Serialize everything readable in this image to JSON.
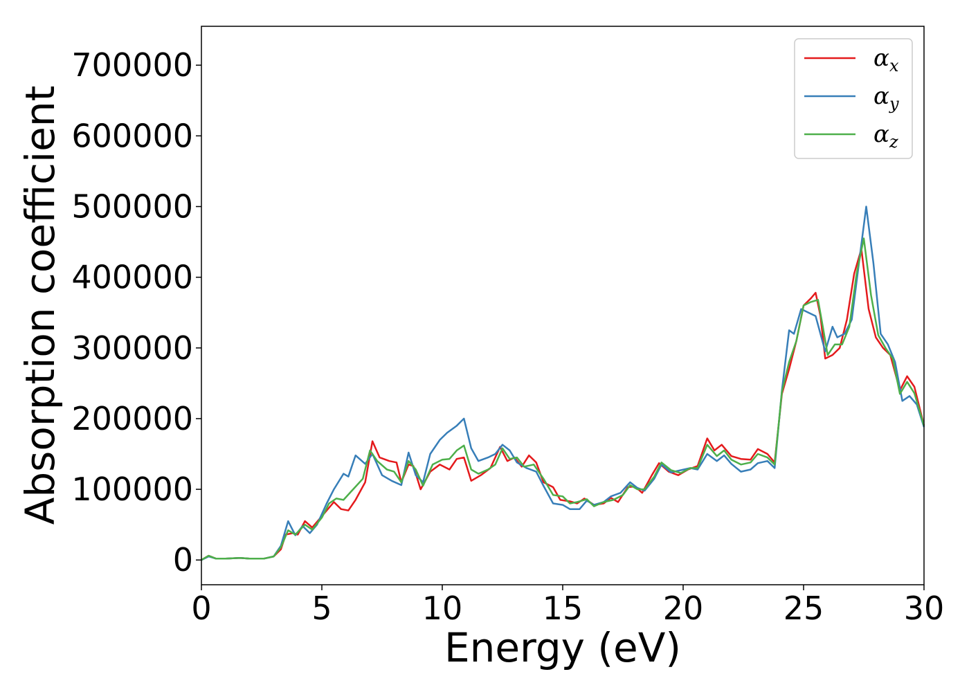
{
  "chart_data": {
    "type": "line",
    "title": "",
    "xlabel": "Energy (eV)",
    "ylabel": "Absorption coefficient",
    "xlim": [
      0,
      30
    ],
    "ylim": [
      -35000,
      755000
    ],
    "x_ticks": [
      0,
      5,
      10,
      15,
      20,
      25,
      30
    ],
    "y_ticks": [
      0,
      100000,
      200000,
      300000,
      400000,
      500000,
      600000,
      700000
    ],
    "grid": false,
    "legend": "top-right",
    "series": [
      {
        "name": "α_x",
        "legend_main": "α",
        "legend_sub": "x",
        "color": "#e41a1c",
        "points": [
          [
            0,
            0
          ],
          [
            0.3,
            6000
          ],
          [
            0.6,
            2000
          ],
          [
            1.0,
            2000
          ],
          [
            1.6,
            3000
          ],
          [
            2.0,
            2000
          ],
          [
            2.6,
            2000
          ],
          [
            3.0,
            5000
          ],
          [
            3.3,
            15000
          ],
          [
            3.5,
            36000
          ],
          [
            3.8,
            38000
          ],
          [
            4.0,
            36000
          ],
          [
            4.3,
            55000
          ],
          [
            4.6,
            46000
          ],
          [
            5.0,
            62000
          ],
          [
            5.5,
            82000
          ],
          [
            5.8,
            72000
          ],
          [
            6.1,
            70000
          ],
          [
            6.4,
            85000
          ],
          [
            6.8,
            110000
          ],
          [
            7.1,
            168000
          ],
          [
            7.4,
            145000
          ],
          [
            7.8,
            140000
          ],
          [
            8.1,
            138000
          ],
          [
            8.3,
            110000
          ],
          [
            8.6,
            135000
          ],
          [
            8.8,
            133000
          ],
          [
            9.1,
            100000
          ],
          [
            9.5,
            125000
          ],
          [
            9.9,
            135000
          ],
          [
            10.3,
            128000
          ],
          [
            10.6,
            143000
          ],
          [
            10.9,
            145000
          ],
          [
            11.2,
            112000
          ],
          [
            11.6,
            120000
          ],
          [
            12.0,
            130000
          ],
          [
            12.4,
            160000
          ],
          [
            12.7,
            140000
          ],
          [
            13.0,
            145000
          ],
          [
            13.3,
            132000
          ],
          [
            13.6,
            148000
          ],
          [
            13.9,
            138000
          ],
          [
            14.2,
            110000
          ],
          [
            14.6,
            103000
          ],
          [
            14.9,
            85000
          ],
          [
            15.3,
            83000
          ],
          [
            15.6,
            80000
          ],
          [
            15.9,
            87000
          ],
          [
            16.3,
            78000
          ],
          [
            16.7,
            80000
          ],
          [
            17.0,
            88000
          ],
          [
            17.3,
            82000
          ],
          [
            17.7,
            103000
          ],
          [
            18.0,
            104000
          ],
          [
            18.3,
            95000
          ],
          [
            18.7,
            120000
          ],
          [
            19.0,
            137000
          ],
          [
            19.4,
            125000
          ],
          [
            19.8,
            120000
          ],
          [
            20.2,
            128000
          ],
          [
            20.6,
            133000
          ],
          [
            21.0,
            172000
          ],
          [
            21.3,
            155000
          ],
          [
            21.6,
            163000
          ],
          [
            22.0,
            147000
          ],
          [
            22.4,
            143000
          ],
          [
            22.8,
            142000
          ],
          [
            23.1,
            157000
          ],
          [
            23.5,
            150000
          ],
          [
            23.8,
            138000
          ],
          [
            24.1,
            235000
          ],
          [
            24.4,
            270000
          ],
          [
            24.7,
            310000
          ],
          [
            25.0,
            360000
          ],
          [
            25.3,
            370000
          ],
          [
            25.5,
            378000
          ],
          [
            25.7,
            345000
          ],
          [
            25.9,
            285000
          ],
          [
            26.2,
            290000
          ],
          [
            26.5,
            300000
          ],
          [
            26.8,
            340000
          ],
          [
            27.1,
            405000
          ],
          [
            27.4,
            440000
          ],
          [
            27.7,
            355000
          ],
          [
            28.0,
            315000
          ],
          [
            28.3,
            300000
          ],
          [
            28.6,
            290000
          ],
          [
            29.0,
            240000
          ],
          [
            29.3,
            260000
          ],
          [
            29.6,
            245000
          ],
          [
            30.0,
            190000
          ]
        ]
      },
      {
        "name": "α_y",
        "legend_main": "α",
        "legend_sub": "y",
        "color": "#377eb8",
        "points": [
          [
            0,
            0
          ],
          [
            0.3,
            5000
          ],
          [
            0.6,
            2000
          ],
          [
            1.0,
            2000
          ],
          [
            1.6,
            3000
          ],
          [
            2.0,
            2000
          ],
          [
            2.6,
            2000
          ],
          [
            3.0,
            5000
          ],
          [
            3.3,
            20000
          ],
          [
            3.6,
            55000
          ],
          [
            3.9,
            35000
          ],
          [
            4.2,
            48000
          ],
          [
            4.5,
            38000
          ],
          [
            4.8,
            50000
          ],
          [
            5.2,
            80000
          ],
          [
            5.5,
            100000
          ],
          [
            5.9,
            122000
          ],
          [
            6.1,
            118000
          ],
          [
            6.4,
            148000
          ],
          [
            6.8,
            136000
          ],
          [
            7.1,
            150000
          ],
          [
            7.5,
            120000
          ],
          [
            7.9,
            112000
          ],
          [
            8.3,
            106000
          ],
          [
            8.6,
            152000
          ],
          [
            8.9,
            120000
          ],
          [
            9.2,
            110000
          ],
          [
            9.5,
            150000
          ],
          [
            9.9,
            170000
          ],
          [
            10.2,
            180000
          ],
          [
            10.6,
            190000
          ],
          [
            10.9,
            200000
          ],
          [
            11.2,
            158000
          ],
          [
            11.5,
            140000
          ],
          [
            11.9,
            145000
          ],
          [
            12.2,
            150000
          ],
          [
            12.5,
            163000
          ],
          [
            12.8,
            155000
          ],
          [
            13.1,
            138000
          ],
          [
            13.5,
            130000
          ],
          [
            13.9,
            125000
          ],
          [
            14.2,
            105000
          ],
          [
            14.6,
            80000
          ],
          [
            15.0,
            78000
          ],
          [
            15.3,
            72000
          ],
          [
            15.7,
            72000
          ],
          [
            16.0,
            84000
          ],
          [
            16.3,
            78000
          ],
          [
            16.7,
            82000
          ],
          [
            17.0,
            90000
          ],
          [
            17.4,
            95000
          ],
          [
            17.8,
            110000
          ],
          [
            18.1,
            102000
          ],
          [
            18.4,
            98000
          ],
          [
            18.8,
            115000
          ],
          [
            19.1,
            135000
          ],
          [
            19.5,
            124000
          ],
          [
            19.9,
            127000
          ],
          [
            20.3,
            130000
          ],
          [
            20.6,
            128000
          ],
          [
            21.0,
            150000
          ],
          [
            21.4,
            140000
          ],
          [
            21.7,
            148000
          ],
          [
            22.0,
            136000
          ],
          [
            22.4,
            125000
          ],
          [
            22.8,
            128000
          ],
          [
            23.1,
            137000
          ],
          [
            23.5,
            140000
          ],
          [
            23.8,
            130000
          ],
          [
            24.1,
            240000
          ],
          [
            24.4,
            325000
          ],
          [
            24.6,
            320000
          ],
          [
            24.9,
            355000
          ],
          [
            25.2,
            350000
          ],
          [
            25.5,
            345000
          ],
          [
            25.7,
            320000
          ],
          [
            25.9,
            295000
          ],
          [
            26.2,
            330000
          ],
          [
            26.4,
            315000
          ],
          [
            26.7,
            320000
          ],
          [
            27.0,
            340000
          ],
          [
            27.3,
            420000
          ],
          [
            27.6,
            500000
          ],
          [
            27.9,
            420000
          ],
          [
            28.2,
            320000
          ],
          [
            28.5,
            305000
          ],
          [
            28.8,
            280000
          ],
          [
            29.1,
            225000
          ],
          [
            29.4,
            232000
          ],
          [
            29.7,
            220000
          ],
          [
            30.0,
            188000
          ]
        ]
      },
      {
        "name": "α_z",
        "legend_main": "α",
        "legend_sub": "z",
        "color": "#4daf4a",
        "points": [
          [
            0,
            0
          ],
          [
            0.3,
            6000
          ],
          [
            0.6,
            2000
          ],
          [
            1.0,
            2000
          ],
          [
            1.6,
            3000
          ],
          [
            2.0,
            2000
          ],
          [
            2.6,
            2000
          ],
          [
            3.0,
            5000
          ],
          [
            3.3,
            18000
          ],
          [
            3.6,
            42000
          ],
          [
            3.9,
            36000
          ],
          [
            4.3,
            50000
          ],
          [
            4.6,
            43000
          ],
          [
            5.0,
            60000
          ],
          [
            5.3,
            80000
          ],
          [
            5.6,
            87000
          ],
          [
            5.9,
            85000
          ],
          [
            6.3,
            100000
          ],
          [
            6.7,
            115000
          ],
          [
            7.0,
            155000
          ],
          [
            7.3,
            140000
          ],
          [
            7.7,
            128000
          ],
          [
            8.0,
            125000
          ],
          [
            8.3,
            110000
          ],
          [
            8.6,
            140000
          ],
          [
            8.9,
            128000
          ],
          [
            9.2,
            105000
          ],
          [
            9.6,
            135000
          ],
          [
            10.0,
            142000
          ],
          [
            10.3,
            143000
          ],
          [
            10.6,
            155000
          ],
          [
            10.9,
            162000
          ],
          [
            11.2,
            128000
          ],
          [
            11.5,
            122000
          ],
          [
            11.9,
            128000
          ],
          [
            12.2,
            135000
          ],
          [
            12.5,
            158000
          ],
          [
            12.8,
            143000
          ],
          [
            13.1,
            145000
          ],
          [
            13.4,
            132000
          ],
          [
            13.8,
            135000
          ],
          [
            14.2,
            115000
          ],
          [
            14.6,
            92000
          ],
          [
            15.0,
            90000
          ],
          [
            15.3,
            80000
          ],
          [
            15.6,
            82000
          ],
          [
            16.0,
            86000
          ],
          [
            16.3,
            76000
          ],
          [
            16.7,
            82000
          ],
          [
            17.1,
            85000
          ],
          [
            17.5,
            92000
          ],
          [
            17.8,
            106000
          ],
          [
            18.1,
            100000
          ],
          [
            18.4,
            100000
          ],
          [
            18.8,
            118000
          ],
          [
            19.1,
            138000
          ],
          [
            19.5,
            127000
          ],
          [
            19.9,
            123000
          ],
          [
            20.3,
            130000
          ],
          [
            20.6,
            130000
          ],
          [
            21.0,
            163000
          ],
          [
            21.4,
            147000
          ],
          [
            21.7,
            155000
          ],
          [
            22.0,
            142000
          ],
          [
            22.4,
            135000
          ],
          [
            22.8,
            138000
          ],
          [
            23.1,
            150000
          ],
          [
            23.5,
            145000
          ],
          [
            23.8,
            135000
          ],
          [
            24.1,
            238000
          ],
          [
            24.4,
            280000
          ],
          [
            24.7,
            310000
          ],
          [
            25.0,
            360000
          ],
          [
            25.3,
            365000
          ],
          [
            25.6,
            368000
          ],
          [
            25.8,
            330000
          ],
          [
            26.0,
            290000
          ],
          [
            26.3,
            305000
          ],
          [
            26.6,
            305000
          ],
          [
            26.9,
            330000
          ],
          [
            27.2,
            405000
          ],
          [
            27.5,
            455000
          ],
          [
            27.8,
            375000
          ],
          [
            28.1,
            318000
          ],
          [
            28.4,
            300000
          ],
          [
            28.7,
            285000
          ],
          [
            29.0,
            235000
          ],
          [
            29.3,
            252000
          ],
          [
            29.6,
            236000
          ],
          [
            30.0,
            190000
          ]
        ]
      }
    ]
  }
}
